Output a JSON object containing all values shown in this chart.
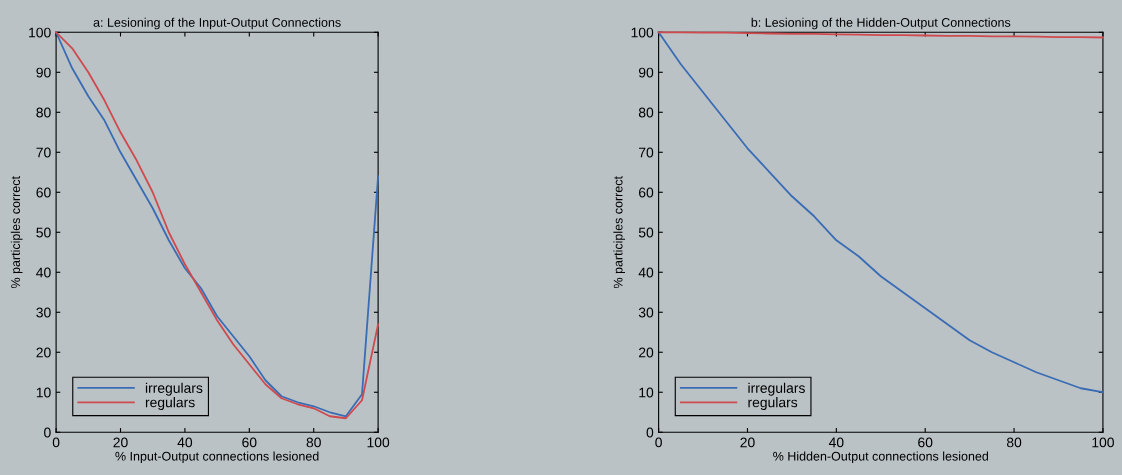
{
  "chart_data": [
    {
      "type": "line",
      "title": "a: Lesioning of the Input-Output Connections",
      "xlabel": "% Input-Output connections lesioned",
      "ylabel": "% participles correct",
      "x": [
        0,
        5,
        10,
        15,
        20,
        25,
        30,
        35,
        40,
        45,
        50,
        55,
        60,
        65,
        70,
        75,
        80,
        85,
        90,
        95,
        100
      ],
      "series": [
        {
          "name": "irregulars",
          "color": "#3a6cb5",
          "values": [
            100,
            91,
            84,
            78,
            70,
            63,
            56,
            48,
            41,
            36,
            29,
            24,
            19,
            13,
            9,
            7.5,
            6.5,
            5,
            4,
            9.5,
            64
          ]
        },
        {
          "name": "regulars",
          "color": "#cf4a4e",
          "values": [
            100,
            96,
            90,
            83,
            75,
            68,
            60,
            50,
            42,
            35,
            28,
            22,
            17,
            12,
            8.5,
            7,
            6,
            4,
            3.5,
            8,
            27
          ]
        }
      ],
      "xlim": [
        0,
        100
      ],
      "ylim": [
        0,
        100
      ],
      "xticks": [
        0,
        20,
        40,
        60,
        80,
        100
      ],
      "yticks": [
        0,
        10,
        20,
        30,
        40,
        50,
        60,
        70,
        80,
        90,
        100
      ],
      "legend": "bottom left",
      "grid": false
    },
    {
      "type": "line",
      "title": "b: Lesioning of the Hidden-Output Connections",
      "xlabel": "% Hidden-Output connections lesioned",
      "ylabel": "% participles correct",
      "x": [
        0,
        5,
        10,
        15,
        20,
        25,
        30,
        35,
        40,
        45,
        50,
        55,
        60,
        65,
        70,
        75,
        80,
        85,
        90,
        95,
        100
      ],
      "series": [
        {
          "name": "irregulars",
          "color": "#3a6cb5",
          "values": [
            100,
            92,
            85,
            78,
            71,
            65,
            59,
            54,
            48,
            44,
            39,
            35,
            31,
            27,
            23,
            20,
            17.5,
            15,
            13,
            11,
            10
          ]
        },
        {
          "name": "regulars",
          "color": "#cf4a4e",
          "values": [
            100,
            100,
            99.9,
            99.9,
            99.8,
            99.7,
            99.6,
            99.6,
            99.5,
            99.4,
            99.3,
            99.3,
            99.2,
            99.1,
            99.1,
            99,
            99,
            98.9,
            98.8,
            98.8,
            98.7
          ]
        }
      ],
      "xlim": [
        0,
        100
      ],
      "ylim": [
        0,
        100
      ],
      "xticks": [
        0,
        20,
        40,
        60,
        80,
        100
      ],
      "yticks": [
        0,
        10,
        20,
        30,
        40,
        50,
        60,
        70,
        80,
        90,
        100
      ],
      "legend": "bottom left",
      "grid": false
    }
  ]
}
